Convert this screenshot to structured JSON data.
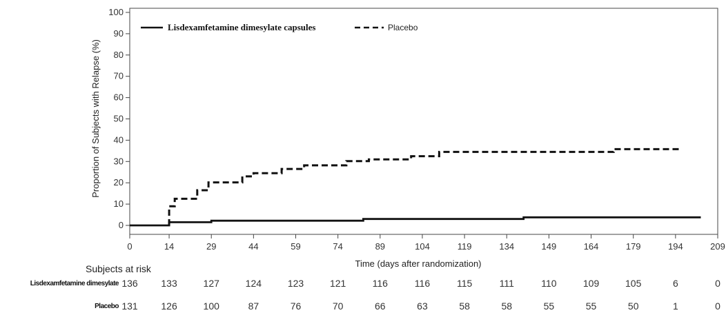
{
  "chart_data": {
    "type": "line",
    "title": "",
    "xlabel": "Time (days after randomization)",
    "ylabel": "Proportion of Subjects with Relapse (%)",
    "xlim": [
      0,
      209
    ],
    "ylim": [
      0,
      100
    ],
    "x_ticks": [
      0,
      14,
      29,
      44,
      59,
      74,
      89,
      104,
      119,
      134,
      149,
      164,
      179,
      194,
      209
    ],
    "y_ticks": [
      0,
      10,
      20,
      30,
      40,
      50,
      60,
      70,
      80,
      90,
      100
    ],
    "grid": false,
    "legend_position": "top-left",
    "series": [
      {
        "name": "Lisdexamfetamine dimesylate capsules",
        "style": "solid",
        "color": "#111111",
        "step": true,
        "points": [
          [
            0,
            0
          ],
          [
            14,
            0
          ],
          [
            14,
            1.5
          ],
          [
            29,
            1.5
          ],
          [
            29,
            2.2
          ],
          [
            83,
            2.2
          ],
          [
            83,
            3
          ],
          [
            140,
            3
          ],
          [
            140,
            3.8
          ],
          [
            203,
            3.8
          ]
        ]
      },
      {
        "name": "Placebo",
        "style": "dashed",
        "color": "#111111",
        "step": true,
        "points": [
          [
            14,
            0
          ],
          [
            14,
            9
          ],
          [
            16,
            9
          ],
          [
            16,
            12.5
          ],
          [
            24,
            12.5
          ],
          [
            24,
            16.5
          ],
          [
            28,
            16.5
          ],
          [
            28,
            20.2
          ],
          [
            40,
            20.2
          ],
          [
            40,
            23
          ],
          [
            44,
            23
          ],
          [
            44,
            24.5
          ],
          [
            54,
            24.5
          ],
          [
            54,
            26.5
          ],
          [
            62,
            26.5
          ],
          [
            62,
            28.2
          ],
          [
            77,
            28.2
          ],
          [
            77,
            30.2
          ],
          [
            85,
            30.2
          ],
          [
            85,
            31
          ],
          [
            100,
            31
          ],
          [
            100,
            32.5
          ],
          [
            110,
            32.5
          ],
          [
            110,
            34.5
          ],
          [
            172,
            34.5
          ],
          [
            172,
            35.8
          ],
          [
            196,
            35.8
          ]
        ]
      }
    ],
    "risk_table": {
      "title": "Subjects at risk",
      "times": [
        0,
        14,
        29,
        44,
        59,
        74,
        89,
        104,
        119,
        134,
        149,
        164,
        179,
        194,
        209
      ],
      "rows": [
        {
          "label": "Lisdexamfetamine dimesylate",
          "values": [
            "136",
            "133",
            "127",
            "124",
            "123",
            "121",
            "116",
            "116",
            "115",
            "111",
            "110",
            "109",
            "105",
            "6",
            "0"
          ]
        },
        {
          "label": "Placebo",
          "values": [
            "131",
            "126",
            "100",
            "87",
            "76",
            "70",
            "66",
            "63",
            "58",
            "58",
            "55",
            "55",
            "50",
            "1",
            "0"
          ]
        }
      ]
    }
  }
}
